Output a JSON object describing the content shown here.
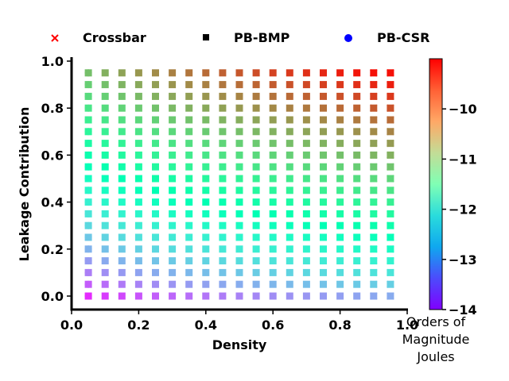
{
  "chart_data": {
    "type": "scatter",
    "xlabel": "Density",
    "ylabel": "Leakage Contribution",
    "xlim": [
      0.0,
      1.0
    ],
    "ylim": [
      -0.05,
      1.02
    ],
    "xticks": [
      "0.0",
      "0.2",
      "0.4",
      "0.6",
      "0.8",
      "1.0"
    ],
    "yticks": [
      "0.0",
      "0.2",
      "0.4",
      "0.6",
      "0.8",
      "1.0"
    ],
    "legend": {
      "placement": "top",
      "entries": [
        {
          "name": "Crossbar",
          "marker": "x",
          "color": "#ff0000"
        },
        {
          "name": "PB-BMP",
          "marker": "square",
          "color": "#000000"
        },
        {
          "name": "PB-CSR",
          "marker": "circle",
          "color": "#0000ff"
        }
      ]
    },
    "colorbar": {
      "title": [
        "Orders of",
        "Magnitude",
        "Joules"
      ],
      "range": [
        -14.0,
        -9.0
      ],
      "ticks": [
        "−14",
        "−13",
        "−12",
        "−11",
        "−10"
      ],
      "tick_values": [
        -14,
        -13,
        -12,
        -11,
        -10
      ],
      "colormap": "rainbow"
    },
    "grid": {
      "densities": [
        0.05,
        0.1,
        0.15,
        0.2,
        0.25,
        0.3,
        0.35,
        0.4,
        0.45,
        0.5,
        0.55,
        0.6,
        0.65,
        0.7,
        0.75,
        0.8,
        0.85,
        0.9,
        0.95
      ],
      "leakage": [
        0.0,
        0.05,
        0.1,
        0.15,
        0.2,
        0.25,
        0.3,
        0.35,
        0.4,
        0.45,
        0.5,
        0.55,
        0.6,
        0.65,
        0.7,
        0.75,
        0.8,
        0.85,
        0.9,
        0.95
      ]
    },
    "series": [
      {
        "name": "PB-CSR",
        "marker": "circle",
        "points": "density <= 0.05 (first column)"
      },
      {
        "name": "PB-BMP",
        "marker": "square",
        "points": "0.05 <= density <= 0.95"
      },
      {
        "name": "Crossbar",
        "marker": "x",
        "points": "density >= 0.9"
      }
    ]
  }
}
